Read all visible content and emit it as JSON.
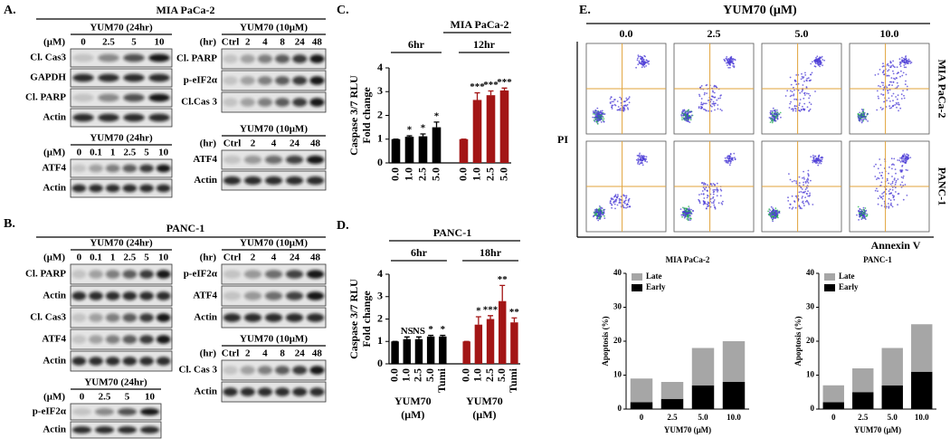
{
  "panels": {
    "A": "A.",
    "B": "B.",
    "C": "C.",
    "D": "D.",
    "E": "E."
  },
  "blots": {
    "mia": {
      "title": "MIA PaCa-2",
      "blots": [
        {
          "header": "YUM70 (24hr)",
          "unit": "(μM)",
          "lanes": [
            "0",
            "2.5",
            "5",
            "10"
          ],
          "rows": [
            "Cl. Cas3",
            "GAPDH",
            "Cl. PARP",
            "Actin"
          ]
        },
        {
          "header": "YUM70 (24hr)",
          "unit": "(μM)",
          "lanes": [
            "0",
            "0.1",
            "1",
            "2.5",
            "5",
            "10"
          ],
          "rows": [
            "ATF4",
            "Actin"
          ]
        },
        {
          "header": "YUM70 (10μM)",
          "unit": "(hr)",
          "lanes": [
            "Ctrl",
            "2",
            "4",
            "8",
            "24",
            "48"
          ],
          "rows": [
            "Cl. PARP",
            "p-eIF2α",
            "Cl.Cas 3"
          ]
        },
        {
          "header": "YUM70 (10μM)",
          "unit": "(hr)",
          "lanes": [
            "Ctrl",
            "2",
            "4",
            "24",
            "48"
          ],
          "rows": [
            "ATF4",
            "Actin"
          ]
        }
      ]
    },
    "panc": {
      "title": "PANC-1",
      "blots": [
        {
          "header": "YUM70 (24hr)",
          "unit": "(μM)",
          "lanes": [
            "0",
            "0.1",
            "1",
            "2.5",
            "5",
            "10"
          ],
          "rows": [
            "Cl. PARP",
            "Actin",
            "Cl. Cas3",
            "ATF4",
            "Actin"
          ]
        },
        {
          "header": "YUM70 (24hr)",
          "unit": "(μM)",
          "lanes": [
            "0",
            "2.5",
            "5",
            "10"
          ],
          "rows": [
            "p-eIF2α",
            "Actin"
          ]
        },
        {
          "header": "YUM70 (10μM)",
          "unit": "(hr)",
          "lanes": [
            "Ctrl",
            "2",
            "4",
            "24",
            "48"
          ],
          "rows": [
            "p-eIF2α",
            "ATF4",
            "Actin"
          ]
        },
        {
          "header": "YUM70 (10μM)",
          "unit": "(hr)",
          "lanes": [
            "Ctrl",
            "2",
            "4",
            "8",
            "24",
            "48"
          ],
          "rows": [
            "Cl. Cas 3",
            "Actin"
          ]
        }
      ]
    }
  },
  "chart_data": [
    {
      "type": "bar",
      "title": "MIA PaCa-2",
      "y_label": [
        "Caspase 3/7 RLU",
        "Fold change"
      ],
      "ylim": [
        0,
        4
      ],
      "yticks": [
        0,
        1,
        2,
        3,
        4
      ],
      "groups": [
        {
          "name": "6hr",
          "color": "#000000",
          "categories": [
            "0.0",
            "1.0",
            "2.5",
            "5.0"
          ],
          "values": [
            1,
            1.1,
            1.12,
            1.5
          ],
          "errors": [
            0,
            0.04,
            0.1,
            0.22
          ],
          "annotations": [
            null,
            "*",
            "*",
            "*"
          ]
        },
        {
          "name": "12hr",
          "color": "#a31515",
          "categories": [
            "0.0",
            "1.0",
            "2.5",
            "5.0"
          ],
          "values": [
            1,
            2.65,
            2.85,
            3.05
          ],
          "errors": [
            0,
            0.3,
            0.18,
            0.1
          ],
          "annotations": [
            null,
            "***",
            "***",
            "***"
          ]
        }
      ]
    },
    {
      "type": "bar",
      "title": "PANC-1",
      "y_label": [
        "Caspase 3/7 RLU",
        "Fold change"
      ],
      "ylim": [
        0,
        4
      ],
      "yticks": [
        0,
        1,
        2,
        3,
        4
      ],
      "groups": [
        {
          "name": "6hr",
          "color": "#000000",
          "categories": [
            "0.0",
            "1.0",
            "2.5",
            "5.0",
            "Tumi"
          ],
          "values": [
            1,
            1.1,
            1.1,
            1.22,
            1.22
          ],
          "errors": [
            0,
            0.1,
            0.1,
            0.05,
            0.05
          ],
          "annotations": [
            null,
            "NS",
            "NS",
            "*",
            "*"
          ],
          "x_label": [
            "YUM70",
            "(μM)"
          ]
        },
        {
          "name": "18hr",
          "color": "#a31515",
          "categories": [
            "0.0",
            "1.0",
            "2.5",
            "5.0",
            "Tumi"
          ],
          "values": [
            1,
            1.75,
            2.0,
            2.8,
            1.85
          ],
          "errors": [
            0,
            0.35,
            0.15,
            0.7,
            0.2
          ],
          "annotations": [
            null,
            "*",
            "***",
            "**",
            "**"
          ],
          "x_label": [
            "YUM70",
            "(μM)"
          ]
        }
      ]
    },
    {
      "type": "stacked_bar",
      "title": "MIA PaCa-2",
      "y_label": "Apoptosis (%)",
      "x_label": "YUM70 (μM)",
      "categories": [
        "0",
        "2.5",
        "5.0",
        "10.0"
      ],
      "ylim": [
        0,
        40
      ],
      "yticks": [
        0,
        10,
        20,
        30,
        40
      ],
      "legend": "upper left",
      "series": [
        {
          "name": "Early",
          "color": "#000000",
          "values": [
            2,
            3,
            7,
            8
          ]
        },
        {
          "name": "Late",
          "color": "#a6a6a6",
          "values": [
            7,
            5,
            11,
            12
          ]
        }
      ]
    },
    {
      "type": "stacked_bar",
      "title": "PANC-1",
      "y_label": "Apoptosis (%)",
      "x_label": "YUM70 (μM)",
      "categories": [
        "0",
        "2.5",
        "5.0",
        "10.0"
      ],
      "ylim": [
        0,
        40
      ],
      "yticks": [
        0,
        10,
        20,
        30,
        40
      ],
      "legend": "upper left",
      "series": [
        {
          "name": "Early",
          "color": "#000000",
          "values": [
            2,
            5,
            7,
            11
          ]
        },
        {
          "name": "Late",
          "color": "#a6a6a6",
          "values": [
            5,
            7,
            11,
            14
          ]
        }
      ]
    }
  ],
  "flow": {
    "title": "YUM70 (μM)",
    "columns": [
      "0.0",
      "2.5",
      "5.0",
      "10.0"
    ],
    "rows": [
      "MIA PaCa-2",
      "PANC-1"
    ],
    "y_label": "PI",
    "x_label": "Annexin V"
  }
}
